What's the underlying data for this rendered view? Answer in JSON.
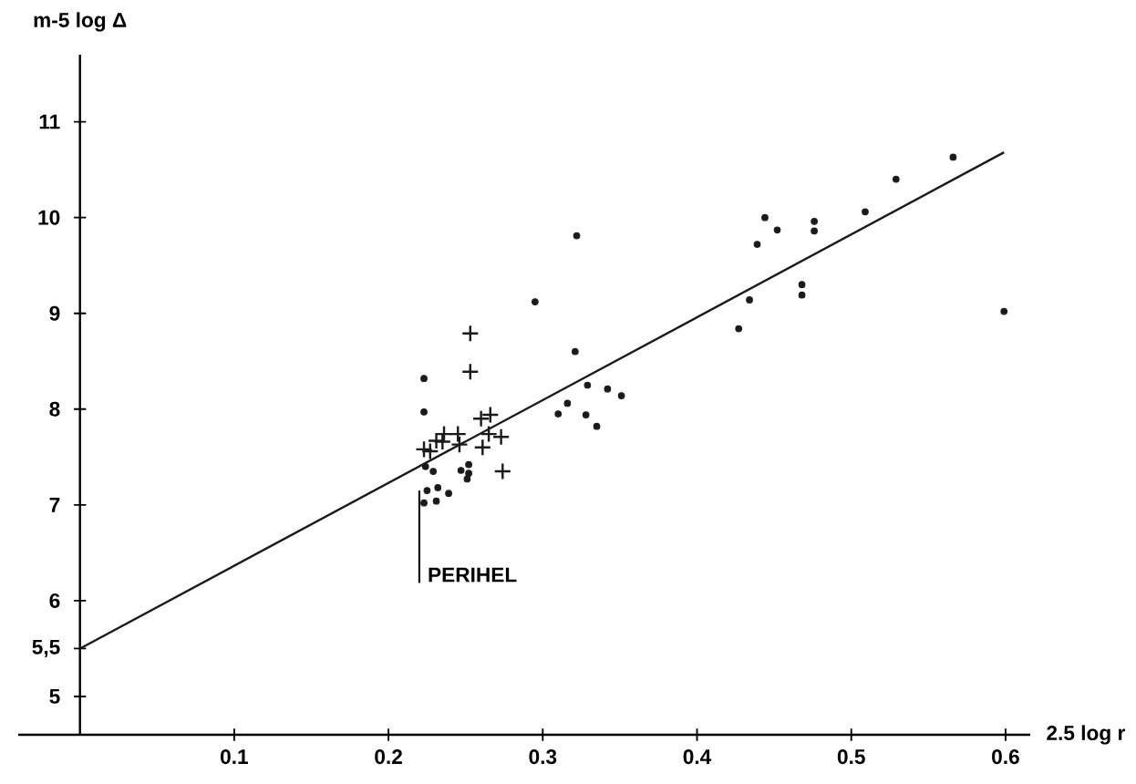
{
  "chart_data": {
    "type": "scatter",
    "xlabel": "2.5 log r",
    "ylabel": "m-5 log Δ",
    "xlim": [
      -0.04,
      0.616
    ],
    "ylim": [
      4.6,
      11.7
    ],
    "xticks": [
      0.1,
      0.2,
      0.3,
      0.4,
      0.5,
      0.6
    ],
    "yticks": [
      5,
      {
        "value": 5.5,
        "label": "5,5"
      },
      6,
      7,
      8,
      9,
      10,
      11
    ],
    "grid": false,
    "annotations": [
      {
        "text": "PERIHEL",
        "x": 0.22,
        "y": 7.15
      }
    ],
    "series": [
      {
        "marker": "circle",
        "color": "#1a1a1a",
        "x": [
          0.295,
          0.321,
          0.223,
          0.223,
          0.329,
          0.342,
          0.351,
          0.316,
          0.31,
          0.328,
          0.335,
          0.224,
          0.229,
          0.247,
          0.252,
          0.252,
          0.251,
          0.225,
          0.232,
          0.239,
          0.223,
          0.231,
          0.322,
          0.444,
          0.452,
          0.439,
          0.476,
          0.476,
          0.509,
          0.529,
          0.566,
          0.434,
          0.427,
          0.468,
          0.468,
          0.599
        ],
        "values": [
          9.12,
          8.6,
          8.32,
          7.97,
          8.25,
          8.21,
          8.14,
          8.06,
          7.95,
          7.94,
          7.82,
          7.4,
          7.35,
          7.36,
          7.42,
          7.33,
          7.27,
          7.15,
          7.18,
          7.12,
          7.02,
          7.04,
          9.81,
          10.0,
          9.87,
          9.72,
          9.96,
          9.86,
          10.06,
          10.4,
          10.63,
          9.14,
          8.84,
          9.3,
          9.19,
          9.02
        ]
      },
      {
        "marker": "cross",
        "color": "#1a1a1a",
        "x": [
          0.253,
          0.253,
          0.26,
          0.266,
          0.265,
          0.273,
          0.261,
          0.274,
          0.223,
          0.227,
          0.231,
          0.236,
          0.235,
          0.245,
          0.246
        ],
        "values": [
          8.79,
          8.39,
          7.9,
          7.94,
          7.74,
          7.71,
          7.6,
          7.35,
          7.58,
          7.56,
          7.67,
          7.74,
          7.66,
          7.74,
          7.63
        ]
      },
      {
        "type": "line",
        "marker": "none",
        "color": "#1a1a1a",
        "x": [
          0,
          0.599
        ],
        "values": [
          5.5,
          10.68
        ]
      }
    ]
  }
}
